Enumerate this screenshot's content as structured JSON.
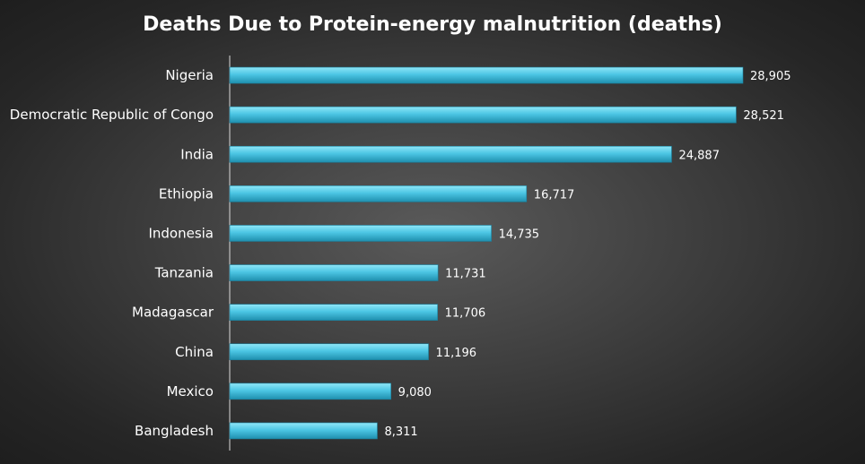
{
  "chart_data": {
    "type": "bar",
    "orientation": "horizontal",
    "title": "Deaths Due to Protein-energy malnutrition (deaths)",
    "categories": [
      "Nigeria",
      "Democratic Republic of Congo",
      "India",
      "Ethiopia",
      "Indonesia",
      "Tanzania",
      "Madagascar",
      "China",
      "Mexico",
      "Bangladesh"
    ],
    "values": [
      28905,
      28521,
      24887,
      16717,
      14735,
      11731,
      11706,
      11196,
      9080,
      8311
    ],
    "value_labels": [
      "28,905",
      "28,521",
      "24,887",
      "16,717",
      "14,735",
      "11,731",
      "11,706",
      "11,196",
      "9,080",
      "8,311"
    ],
    "xlabel": "",
    "ylabel": "",
    "xlim": [
      0,
      30000
    ],
    "grid": false,
    "legend": "none",
    "colors": {
      "bar_top": "#8fe6f7",
      "bar_mid": "#4cc6e4",
      "bar_bottom": "#1f8fae",
      "text": "#ffffff",
      "axis": "#d9d9d9"
    }
  }
}
